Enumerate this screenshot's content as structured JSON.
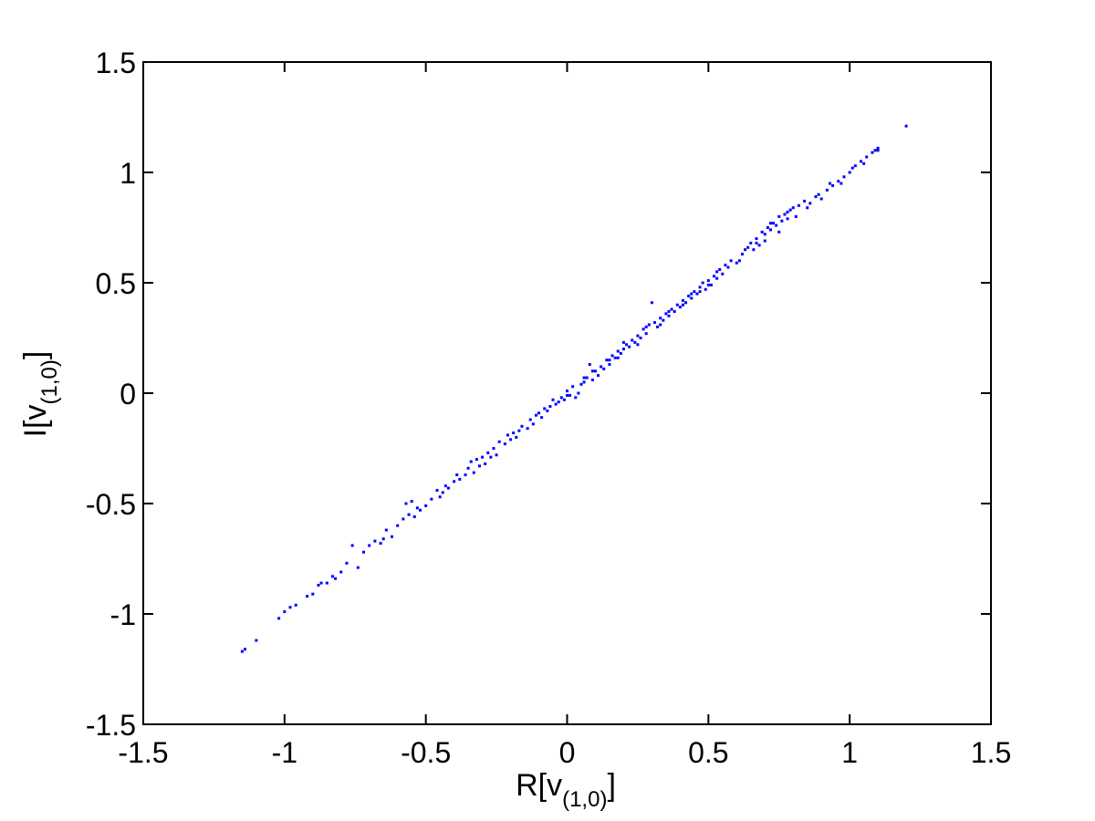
{
  "chart_data": {
    "type": "scatter",
    "title": "",
    "xlabel": {
      "main": "R[v",
      "sub": "(1,0)",
      "close": "]"
    },
    "ylabel": {
      "main": "I[v",
      "sub": "(1,0)",
      "close": "]"
    },
    "xlim": [
      -1.5,
      1.5
    ],
    "ylim": [
      -1.5,
      1.5
    ],
    "xticks": [
      -1.5,
      -1,
      -0.5,
      0,
      0.5,
      1,
      1.5
    ],
    "yticks": [
      -1.5,
      -1,
      -0.5,
      0,
      0.5,
      1,
      1.5
    ],
    "xtick_labels": [
      "-1.5",
      "-1",
      "-0.5",
      "0",
      "0.5",
      "1",
      "1.5"
    ],
    "ytick_labels": [
      "-1.5",
      "-1",
      "-0.5",
      "0",
      "0.5",
      "1",
      "1.5"
    ],
    "grid": false,
    "marker_color": "#0000ff",
    "series": [
      {
        "points": [
          [
            -1.15,
            -1.17
          ],
          [
            -1.14,
            -1.16
          ],
          [
            -1.1,
            -1.12
          ],
          [
            -1.02,
            -1.02
          ],
          [
            -1.0,
            -0.99
          ],
          [
            -0.98,
            -0.97
          ],
          [
            -0.96,
            -0.96
          ],
          [
            -0.92,
            -0.92
          ],
          [
            -0.9,
            -0.91
          ],
          [
            -0.87,
            -0.86
          ],
          [
            -0.85,
            -0.86
          ],
          [
            -0.83,
            -0.83
          ],
          [
            -0.82,
            -0.84
          ],
          [
            -0.8,
            -0.81
          ],
          [
            -0.78,
            -0.77
          ],
          [
            -0.76,
            -0.69
          ],
          [
            -0.74,
            -0.79
          ],
          [
            -0.72,
            -0.72
          ],
          [
            -0.7,
            -0.69
          ],
          [
            -0.68,
            -0.67
          ],
          [
            -0.66,
            -0.68
          ],
          [
            -0.65,
            -0.66
          ],
          [
            -0.64,
            -0.62
          ],
          [
            -0.62,
            -0.65
          ],
          [
            -0.6,
            -0.6
          ],
          [
            -0.58,
            -0.57
          ],
          [
            -0.56,
            -0.55
          ],
          [
            -0.55,
            -0.49
          ],
          [
            -0.54,
            -0.56
          ],
          [
            -0.53,
            -0.52
          ],
          [
            -0.52,
            -0.53
          ],
          [
            -0.5,
            -0.51
          ],
          [
            -0.48,
            -0.48
          ],
          [
            -0.46,
            -0.44
          ],
          [
            -0.45,
            -0.47
          ],
          [
            -0.44,
            -0.45
          ],
          [
            -0.42,
            -0.43
          ],
          [
            -0.4,
            -0.4
          ],
          [
            -0.39,
            -0.37
          ],
          [
            -0.38,
            -0.39
          ],
          [
            -0.36,
            -0.37
          ],
          [
            -0.35,
            -0.34
          ],
          [
            -0.34,
            -0.31
          ],
          [
            -0.33,
            -0.36
          ],
          [
            -0.32,
            -0.3
          ],
          [
            -0.3,
            -0.29
          ],
          [
            -0.29,
            -0.32
          ],
          [
            -0.28,
            -0.27
          ],
          [
            -0.26,
            -0.25
          ],
          [
            -0.25,
            -0.28
          ],
          [
            -0.24,
            -0.22
          ],
          [
            -0.22,
            -0.23
          ],
          [
            -0.21,
            -0.19
          ],
          [
            -0.2,
            -0.21
          ],
          [
            -0.18,
            -0.2
          ],
          [
            -0.17,
            -0.17
          ],
          [
            -0.16,
            -0.15
          ],
          [
            -0.14,
            -0.16
          ],
          [
            -0.13,
            -0.12
          ],
          [
            -0.12,
            -0.14
          ],
          [
            -0.1,
            -0.09
          ],
          [
            -0.09,
            -0.11
          ],
          [
            -0.08,
            -0.07
          ],
          [
            -0.06,
            -0.06
          ],
          [
            -0.05,
            -0.03
          ],
          [
            -0.04,
            -0.05
          ],
          [
            -0.02,
            -0.02
          ],
          [
            -0.01,
            -0.03
          ],
          [
            0.0,
            0.01
          ],
          [
            0.01,
            -0.01
          ],
          [
            0.02,
            0.03
          ],
          [
            0.03,
            -0.02
          ],
          [
            0.04,
            0.0
          ],
          [
            0.05,
            0.04
          ],
          [
            0.06,
            0.05
          ],
          [
            0.07,
            0.07
          ],
          [
            0.08,
            0.13
          ],
          [
            0.09,
            0.06
          ],
          [
            0.1,
            0.1
          ],
          [
            0.11,
            0.08
          ],
          [
            0.12,
            0.12
          ],
          [
            0.13,
            0.11
          ],
          [
            0.14,
            0.15
          ],
          [
            0.15,
            0.13
          ],
          [
            0.16,
            0.17
          ],
          [
            0.17,
            0.16
          ],
          [
            0.18,
            0.19
          ],
          [
            0.19,
            0.18
          ],
          [
            0.2,
            0.2
          ],
          [
            0.21,
            0.22
          ],
          [
            0.22,
            0.21
          ],
          [
            0.23,
            0.24
          ],
          [
            0.24,
            0.23
          ],
          [
            0.25,
            0.26
          ],
          [
            0.26,
            0.25
          ],
          [
            0.27,
            0.29
          ],
          [
            0.28,
            0.27
          ],
          [
            0.29,
            0.31
          ],
          [
            0.3,
            0.41
          ],
          [
            0.31,
            0.32
          ],
          [
            0.32,
            0.3
          ],
          [
            0.33,
            0.34
          ],
          [
            0.34,
            0.33
          ],
          [
            0.35,
            0.36
          ],
          [
            0.36,
            0.35
          ],
          [
            0.37,
            0.38
          ],
          [
            0.38,
            0.37
          ],
          [
            0.39,
            0.4
          ],
          [
            0.4,
            0.39
          ],
          [
            0.41,
            0.42
          ],
          [
            0.42,
            0.41
          ],
          [
            0.43,
            0.44
          ],
          [
            0.44,
            0.43
          ],
          [
            0.45,
            0.46
          ],
          [
            0.46,
            0.45
          ],
          [
            0.47,
            0.48
          ],
          [
            0.48,
            0.5
          ],
          [
            0.49,
            0.47
          ],
          [
            0.5,
            0.51
          ],
          [
            0.51,
            0.49
          ],
          [
            0.52,
            0.53
          ],
          [
            0.53,
            0.52
          ],
          [
            0.54,
            0.56
          ],
          [
            0.55,
            0.54
          ],
          [
            0.56,
            0.58
          ],
          [
            0.58,
            0.6
          ],
          [
            0.6,
            0.59
          ],
          [
            0.62,
            0.63
          ],
          [
            0.64,
            0.66
          ],
          [
            0.65,
            0.68
          ],
          [
            0.66,
            0.65
          ],
          [
            0.67,
            0.7
          ],
          [
            0.68,
            0.67
          ],
          [
            0.69,
            0.73
          ],
          [
            0.7,
            0.72
          ],
          [
            0.71,
            0.75
          ],
          [
            0.72,
            0.74
          ],
          [
            0.73,
            0.77
          ],
          [
            0.74,
            0.76
          ],
          [
            0.75,
            0.8
          ],
          [
            0.76,
            0.78
          ],
          [
            0.77,
            0.81
          ],
          [
            0.78,
            0.79
          ],
          [
            0.79,
            0.83
          ],
          [
            0.8,
            0.84
          ],
          [
            0.82,
            0.85
          ],
          [
            0.84,
            0.87
          ],
          [
            0.86,
            0.86
          ],
          [
            0.88,
            0.89
          ],
          [
            0.9,
            0.88
          ],
          [
            0.92,
            0.92
          ],
          [
            0.94,
            0.94
          ],
          [
            0.96,
            0.96
          ],
          [
            0.98,
            0.98
          ],
          [
            1.0,
            1.0
          ],
          [
            1.02,
            1.03
          ],
          [
            1.04,
            1.05
          ],
          [
            1.06,
            1.07
          ],
          [
            1.08,
            1.09
          ],
          [
            1.09,
            1.1
          ],
          [
            1.1,
            1.11
          ],
          [
            1.2,
            1.21
          ],
          [
            -0.88,
            -0.87
          ],
          [
            -0.57,
            -0.5
          ],
          [
            -0.43,
            -0.42
          ],
          [
            -0.31,
            -0.33
          ],
          [
            -0.27,
            -0.29
          ],
          [
            -0.19,
            -0.18
          ],
          [
            -0.11,
            -0.1
          ],
          [
            -0.07,
            -0.08
          ],
          [
            -0.03,
            -0.04
          ],
          [
            0.0,
            -0.01
          ],
          [
            0.06,
            0.07
          ],
          [
            0.09,
            0.1
          ],
          [
            0.15,
            0.15
          ],
          [
            0.18,
            0.16
          ],
          [
            0.2,
            0.23
          ],
          [
            0.25,
            0.22
          ],
          [
            0.28,
            0.3
          ],
          [
            0.33,
            0.31
          ],
          [
            0.36,
            0.37
          ],
          [
            0.41,
            0.4
          ],
          [
            0.44,
            0.45
          ],
          [
            0.47,
            0.46
          ],
          [
            0.5,
            0.49
          ],
          [
            0.53,
            0.55
          ],
          [
            0.57,
            0.57
          ],
          [
            0.61,
            0.6
          ],
          [
            0.63,
            0.65
          ],
          [
            0.67,
            0.68
          ],
          [
            0.7,
            0.69
          ],
          [
            0.72,
            0.77
          ],
          [
            0.75,
            0.73
          ],
          [
            0.78,
            0.82
          ],
          [
            0.81,
            0.8
          ],
          [
            0.85,
            0.84
          ],
          [
            0.89,
            0.9
          ],
          [
            0.93,
            0.95
          ],
          [
            0.97,
            0.95
          ],
          [
            1.01,
            1.02
          ],
          [
            1.05,
            1.04
          ],
          [
            1.1,
            1.1
          ]
        ]
      }
    ]
  }
}
